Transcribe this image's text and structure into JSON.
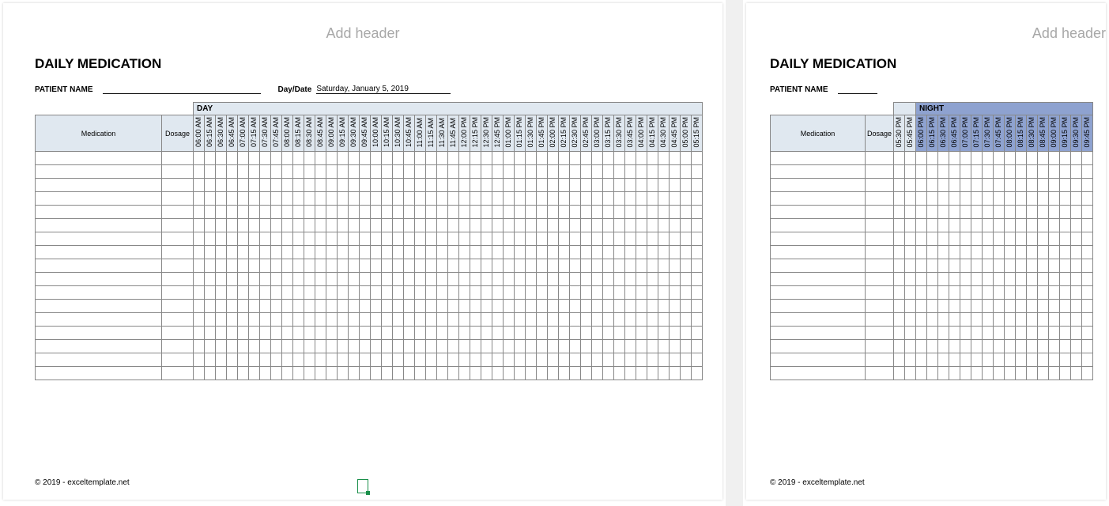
{
  "header_placeholder": "Add header",
  "title": "DAILY MEDICATION",
  "patient_label": "PATIENT NAME",
  "daydate_label": "Day/Date",
  "daydate_value": "Saturday, January 5, 2019",
  "columns": {
    "medication": "Medication",
    "dosage": "Dosage"
  },
  "sections": {
    "day": "DAY",
    "night": "NIGHT"
  },
  "colors": {
    "day_header_bg": "#e0e8f0",
    "night_header_bg": "#8ea2d0",
    "cell_border": "#888888",
    "page_bg": "#ffffff",
    "placeholder_text": "#a8a8a8"
  },
  "page1": {
    "time_slots": [
      "06:00 AM",
      "06:15 AM",
      "06:30 AM",
      "06:45 AM",
      "07:00 AM",
      "07:15 AM",
      "07:30 AM",
      "07:45 AM",
      "08:00 AM",
      "08:15 AM",
      "08:30 AM",
      "08:45 AM",
      "09:00 AM",
      "09:15 AM",
      "09:30 AM",
      "09:45 AM",
      "10:00 AM",
      "10:15 AM",
      "10:30 AM",
      "10:45 AM",
      "11:00 AM",
      "11:15 AM",
      "11:30 AM",
      "11:45 AM",
      "12:00 PM",
      "12:15 PM",
      "12:30 PM",
      "12:45 PM",
      "01:00 PM",
      "01:15 PM",
      "01:30 PM",
      "01:45 PM",
      "02:00 PM",
      "02:15 PM",
      "02:30 PM",
      "02:45 PM",
      "03:00 PM",
      "03:15 PM",
      "03:30 PM",
      "03:45 PM",
      "04:00 PM",
      "04:15 PM",
      "04:30 PM",
      "04:45 PM",
      "05:00 PM",
      "05:15 PM"
    ],
    "body_rows": 17
  },
  "page2": {
    "pre_night_slots": [
      "05:30 PM",
      "05:45 PM"
    ],
    "night_slots": [
      "06:00 PM",
      "06:15 PM",
      "06:30 PM",
      "06:45 PM",
      "07:00 PM",
      "07:15 PM",
      "07:30 PM",
      "07:45 PM",
      "08:00 PM",
      "08:15 PM",
      "08:30 PM",
      "08:45 PM",
      "09:00 PM",
      "09:15 PM",
      "09:30 PM",
      "09:45 PM"
    ],
    "body_rows": 17
  },
  "footer": "© 2019 - exceltemplate.net"
}
